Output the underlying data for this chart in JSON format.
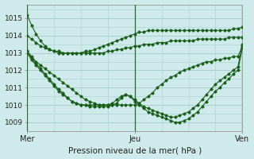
{
  "xlabel": "Pression niveau de la mer( hPa )",
  "background_color": "#ceeaea",
  "grid_color": "#aacece",
  "line_color": "#1a5e1a",
  "ylim": [
    1008.5,
    1015.8
  ],
  "xlim": [
    0,
    48
  ],
  "xtick_positions": [
    0,
    24,
    48
  ],
  "xtick_labels": [
    "Mer",
    "Jeu",
    "Ven"
  ],
  "ytick_positions": [
    1009,
    1010,
    1011,
    1012,
    1013,
    1014,
    1015
  ],
  "series": [
    [
      1015.2,
      1014.6,
      1014.1,
      1013.7,
      1013.4,
      1013.2,
      1013.1,
      1013.0,
      1013.0,
      1013.0,
      1013.0,
      1013.0,
      1013.0,
      1013.1,
      1013.1,
      1013.2,
      1013.3,
      1013.4,
      1013.5,
      1013.6,
      1013.7,
      1013.8,
      1013.9,
      1014.0,
      1014.1,
      1014.2,
      1014.2,
      1014.3,
      1014.3,
      1014.3,
      1014.3,
      1014.3,
      1014.3,
      1014.3,
      1014.3,
      1014.3,
      1014.3,
      1014.3,
      1014.3,
      1014.3,
      1014.3,
      1014.3,
      1014.3,
      1014.3,
      1014.3,
      1014.3,
      1014.4,
      1014.4,
      1014.5
    ],
    [
      1014.0,
      1013.8,
      1013.6,
      1013.4,
      1013.3,
      1013.2,
      1013.1,
      1013.1,
      1013.0,
      1013.0,
      1013.0,
      1013.0,
      1013.0,
      1013.0,
      1013.0,
      1013.0,
      1013.0,
      1013.0,
      1013.1,
      1013.1,
      1013.2,
      1013.2,
      1013.3,
      1013.3,
      1013.4,
      1013.4,
      1013.5,
      1013.5,
      1013.5,
      1013.6,
      1013.6,
      1013.6,
      1013.7,
      1013.7,
      1013.7,
      1013.7,
      1013.7,
      1013.7,
      1013.8,
      1013.8,
      1013.8,
      1013.8,
      1013.8,
      1013.8,
      1013.8,
      1013.9,
      1013.9,
      1013.9,
      1013.9
    ],
    [
      1013.1,
      1012.8,
      1012.5,
      1012.3,
      1012.1,
      1011.9,
      1011.7,
      1011.5,
      1011.3,
      1011.1,
      1010.9,
      1010.7,
      1010.5,
      1010.3,
      1010.2,
      1010.1,
      1010.0,
      1010.0,
      1010.0,
      1010.0,
      1010.0,
      1010.0,
      1010.0,
      1010.0,
      1010.0,
      1010.1,
      1010.3,
      1010.5,
      1010.7,
      1011.0,
      1011.2,
      1011.4,
      1011.6,
      1011.7,
      1011.9,
      1012.0,
      1012.1,
      1012.2,
      1012.3,
      1012.4,
      1012.5,
      1012.5,
      1012.6,
      1012.6,
      1012.7,
      1012.7,
      1012.8,
      1012.8,
      1013.4
    ],
    [
      1013.0,
      1012.6,
      1012.3,
      1012.0,
      1011.7,
      1011.4,
      1011.1,
      1010.8,
      1010.6,
      1010.4,
      1010.2,
      1010.1,
      1010.0,
      1010.0,
      1010.0,
      1010.0,
      1010.0,
      1010.0,
      1010.0,
      1010.1,
      1010.3,
      1010.5,
      1010.6,
      1010.5,
      1010.3,
      1010.1,
      1009.9,
      1009.8,
      1009.7,
      1009.6,
      1009.5,
      1009.4,
      1009.3,
      1009.3,
      1009.4,
      1009.5,
      1009.6,
      1009.8,
      1010.0,
      1010.3,
      1010.6,
      1010.9,
      1011.2,
      1011.4,
      1011.6,
      1011.8,
      1012.0,
      1012.2,
      1013.5
    ],
    [
      1013.1,
      1012.7,
      1012.4,
      1012.1,
      1011.8,
      1011.5,
      1011.2,
      1010.9,
      1010.7,
      1010.4,
      1010.2,
      1010.1,
      1010.0,
      1010.0,
      1009.9,
      1009.9,
      1009.9,
      1009.9,
      1009.9,
      1010.0,
      1010.1,
      1010.4,
      1010.6,
      1010.5,
      1010.2,
      1010.0,
      1009.8,
      1009.6,
      1009.5,
      1009.4,
      1009.3,
      1009.2,
      1009.1,
      1009.0,
      1009.0,
      1009.1,
      1009.2,
      1009.4,
      1009.6,
      1009.9,
      1010.2,
      1010.5,
      1010.8,
      1011.0,
      1011.3,
      1011.5,
      1011.8,
      1012.0,
      1013.3
    ]
  ],
  "figsize": [
    3.2,
    2.0
  ],
  "dpi": 100
}
